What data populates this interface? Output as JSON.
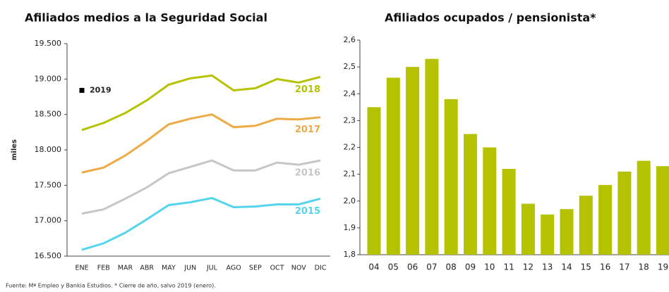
{
  "chart_data": [
    {
      "type": "line",
      "title": "Afiliados medios a la Seguridad Social",
      "ylabel": "miles",
      "categories": [
        "ENE",
        "FEB",
        "MAR",
        "ABR",
        "MAY",
        "JUN",
        "JUL",
        "AGO",
        "SEP",
        "OCT",
        "NOV",
        "DIC"
      ],
      "series": [
        {
          "name": "2018",
          "color": "#b5c200",
          "values": [
            18280,
            18380,
            18520,
            18700,
            18920,
            19010,
            19050,
            18840,
            18870,
            19000,
            18950,
            19030
          ]
        },
        {
          "name": "2017",
          "color": "#eeaa44",
          "values": [
            17680,
            17750,
            17920,
            18130,
            18360,
            18440,
            18500,
            18320,
            18340,
            18440,
            18430,
            18460
          ]
        },
        {
          "name": "2016",
          "color": "#c6c6c6",
          "values": [
            17100,
            17160,
            17310,
            17470,
            17670,
            17760,
            17850,
            17710,
            17710,
            17820,
            17790,
            17850
          ]
        },
        {
          "name": "2015",
          "color": "#55d4ee",
          "values": [
            16590,
            16680,
            16830,
            17020,
            17220,
            17260,
            17320,
            17190,
            17200,
            17230,
            17230,
            17310
          ]
        },
        {
          "name": "2019",
          "color": "#000000",
          "values": [
            18840,
            null,
            null,
            null,
            null,
            null,
            null,
            null,
            null,
            null,
            null,
            null
          ]
        }
      ],
      "ylim": [
        16500,
        19500
      ],
      "yticks": [
        {
          "value": 16500,
          "label": "16.500"
        },
        {
          "value": 17000,
          "label": "17.000"
        },
        {
          "value": 17500,
          "label": "17.500"
        },
        {
          "value": 18000,
          "label": "18.000"
        },
        {
          "value": 18500,
          "label": "18.500"
        },
        {
          "value": 19000,
          "label": "19.000"
        },
        {
          "value": 19500,
          "label": "19.500"
        }
      ]
    },
    {
      "type": "bar",
      "title": "Afiliados ocupados / pensionista*",
      "color": "#b5c200",
      "categories": [
        "04",
        "05",
        "06",
        "07",
        "08",
        "09",
        "10",
        "11",
        "12",
        "13",
        "14",
        "15",
        "16",
        "17",
        "18",
        "19"
      ],
      "values": [
        2.35,
        2.46,
        2.5,
        2.53,
        2.38,
        2.25,
        2.2,
        2.12,
        1.99,
        1.95,
        1.97,
        2.02,
        2.06,
        2.11,
        2.15,
        2.13
      ],
      "ylim": [
        1.8,
        2.6
      ],
      "yticks": [
        {
          "value": 1.8,
          "label": "1,8"
        },
        {
          "value": 1.9,
          "label": "1,9"
        },
        {
          "value": 2.0,
          "label": "2,0"
        },
        {
          "value": 2.1,
          "label": "2,1"
        },
        {
          "value": 2.2,
          "label": "2,2"
        },
        {
          "value": 2.3,
          "label": "2,3"
        },
        {
          "value": 2.4,
          "label": "2,4"
        },
        {
          "value": 2.5,
          "label": "2,5"
        },
        {
          "value": 2.6,
          "label": "2,6"
        }
      ]
    }
  ],
  "footer": "Fuente: Mª Empleo y Bankia Estudios. * Cierre de año, salvo 2019 (enero)."
}
